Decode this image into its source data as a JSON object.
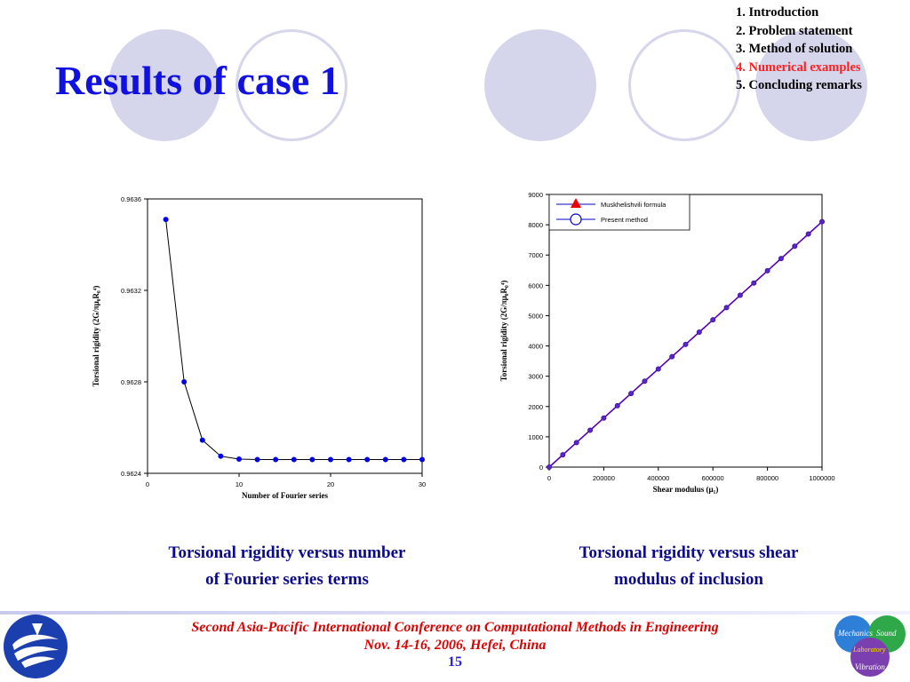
{
  "slide": {
    "title": "Results of case 1",
    "outline": [
      {
        "label": "1. Introduction",
        "active": false
      },
      {
        "label": "2. Problem statement",
        "active": false
      },
      {
        "label": "3. Method of solution",
        "active": false
      },
      {
        "label": "4. Numerical examples",
        "active": true
      },
      {
        "label": "5. Concluding remarks",
        "active": false
      }
    ],
    "captions": {
      "left_line1": "Torsional rigidity versus number",
      "left_line2": "of Fourier series terms",
      "right_line1": "Torsional rigidity versus shear",
      "right_line2": "modulus of inclusion"
    },
    "footer": {
      "conference": "Second Asia-Pacific International Conference on Computational Methods in Engineering",
      "place_date": "Nov. 14-16, 2006, Hefei, China",
      "page": "15"
    },
    "logo_right": {
      "word1": "Mechanics",
      "word2": "Sound",
      "word3": "Laboratory",
      "word4": "Vibration"
    },
    "colors": {
      "title": "#1010e0",
      "outline_active": "#ff2020",
      "caption": "#0a0a8a",
      "footer_text": "#dd0000",
      "page_number": "#2020ee",
      "decor_circle": "#d5d5ec",
      "series_marker": "#0000ee",
      "series_line": "#5a00b4"
    }
  },
  "chart_data": [
    {
      "type": "line",
      "title": "",
      "xlabel": "Number of Fourier series",
      "ylabel": "Torsional rigidity (2G/πμ₀R₀⁴)",
      "xlim": [
        0,
        30
      ],
      "ylim": [
        0.9624,
        0.9636
      ],
      "xticks": [
        0,
        10,
        20,
        30
      ],
      "xtick_labels": [
        "0",
        "10",
        "20",
        "30"
      ],
      "yticks": [
        0.9624,
        0.9628,
        0.9632,
        0.9636
      ],
      "ytick_labels": [
        "0.9624",
        "0.9628",
        "0.9632",
        "0.9636"
      ],
      "grid": false,
      "legend": null,
      "series": [
        {
          "x": [
            2,
            4,
            6,
            8,
            10,
            12,
            14,
            16,
            18,
            20,
            22,
            24,
            26,
            28,
            30
          ],
          "y": [
            0.96351,
            0.9628,
            0.962545,
            0.962475,
            0.962462,
            0.96246,
            0.96246,
            0.96246,
            0.96246,
            0.96246,
            0.96246,
            0.96246,
            0.96246,
            0.96246,
            0.96246
          ],
          "marker": "filled-circle"
        }
      ]
    },
    {
      "type": "line",
      "title": "",
      "xlabel": "Shear modulus (μ₁)",
      "ylabel": "Torsional rigidity (2G/πμ₀R₀⁴)",
      "xlim": [
        0,
        1000000
      ],
      "ylim": [
        0,
        9000
      ],
      "xticks": [
        0,
        200000,
        400000,
        600000,
        800000,
        1000000
      ],
      "xtick_labels": [
        "0",
        "200000",
        "400000",
        "600000",
        "800000",
        "1000000"
      ],
      "yticks": [
        0,
        1000,
        2000,
        3000,
        4000,
        5000,
        6000,
        7000,
        8000,
        9000
      ],
      "ytick_labels": [
        "0",
        "1000",
        "2000",
        "3000",
        "4000",
        "5000",
        "6000",
        "7000",
        "8000",
        "9000"
      ],
      "grid": false,
      "legend": "top-left",
      "series": [
        {
          "name": "Muskhelishvili formula",
          "marker": "filled-triangle",
          "x": [
            0,
            50000,
            100000,
            150000,
            200000,
            250000,
            300000,
            350000,
            400000,
            450000,
            500000,
            550000,
            600000,
            650000,
            700000,
            750000,
            800000,
            850000,
            900000,
            950000,
            1000000
          ],
          "y": [
            1,
            406,
            811,
            1216,
            1621,
            2026,
            2431,
            2836,
            3241,
            3646,
            4051,
            4456,
            4861,
            5266,
            5671,
            6076,
            6481,
            6886,
            7291,
            7696,
            8101
          ]
        },
        {
          "name": "Present method",
          "marker": "open-circle",
          "x": [
            0,
            50000,
            100000,
            150000,
            200000,
            250000,
            300000,
            350000,
            400000,
            450000,
            500000,
            550000,
            600000,
            650000,
            700000,
            750000,
            800000,
            850000,
            900000,
            950000,
            1000000
          ],
          "y": [
            1,
            406,
            811,
            1216,
            1621,
            2026,
            2431,
            2836,
            3241,
            3646,
            4051,
            4456,
            4861,
            5266,
            5671,
            6076,
            6481,
            6886,
            7291,
            7696,
            8101
          ]
        }
      ]
    }
  ]
}
